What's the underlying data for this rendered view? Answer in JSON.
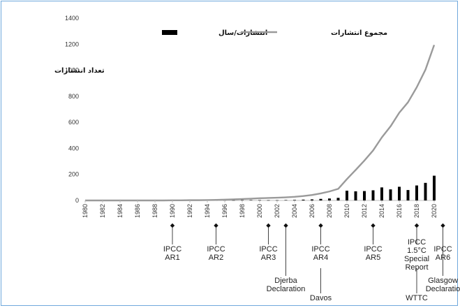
{
  "chart_data": {
    "type": "bar+line",
    "ylabel": "تعداد انتشارات",
    "ylim": [
      0,
      1400
    ],
    "yticks": [
      0,
      200,
      400,
      600,
      800,
      1000,
      1200,
      1400
    ],
    "xlim": [
      1980,
      2020
    ],
    "xticks": [
      1980,
      1982,
      1984,
      1986,
      1988,
      1990,
      1992,
      1994,
      1996,
      1998,
      2000,
      2002,
      2004,
      2006,
      2008,
      2010,
      2012,
      2014,
      2016,
      2018,
      2020
    ],
    "legend": {
      "position": "top-center"
    },
    "grid": false,
    "years": [
      1980,
      1981,
      1982,
      1983,
      1984,
      1985,
      1986,
      1987,
      1988,
      1989,
      1990,
      1991,
      1992,
      1993,
      1994,
      1995,
      1996,
      1997,
      1998,
      1999,
      2000,
      2001,
      2002,
      2003,
      2004,
      2005,
      2006,
      2007,
      2008,
      2009,
      2010,
      2011,
      2012,
      2013,
      2014,
      2015,
      2016,
      2017,
      2018,
      2019,
      2020
    ],
    "series": [
      {
        "name": "انتشارات/سال",
        "kind": "bar",
        "color": "#000000",
        "values": [
          0,
          0,
          0,
          0,
          0,
          0,
          0,
          0,
          0,
          0,
          1,
          0,
          1,
          0,
          1,
          1,
          2,
          2,
          3,
          3,
          3,
          2,
          2,
          3,
          4,
          6,
          8,
          12,
          15,
          20,
          75,
          70,
          72,
          78,
          100,
          85,
          105,
          80,
          115,
          135,
          190
        ]
      },
      {
        "name": "مجموع انتشارات",
        "kind": "line",
        "color": "#9a9a9a",
        "values": [
          0,
          0,
          0,
          0,
          0,
          0,
          0,
          0,
          0,
          0,
          1,
          1,
          2,
          2,
          3,
          4,
          6,
          8,
          11,
          14,
          17,
          19,
          21,
          24,
          28,
          34,
          42,
          54,
          69,
          89,
          164,
          234,
          306,
          384,
          484,
          569,
          674,
          754,
          869,
          1004,
          1194
        ]
      }
    ],
    "events": [
      {
        "year": 1990,
        "level": 1,
        "lines": [
          "IPCC",
          "AR1"
        ]
      },
      {
        "year": 1995,
        "level": 1,
        "lines": [
          "IPCC",
          "AR2"
        ]
      },
      {
        "year": 2001,
        "level": 1,
        "lines": [
          "IPCC",
          "AR3"
        ]
      },
      {
        "year": 2003,
        "level": 2,
        "lines": [
          "Djerba",
          "Declaration"
        ]
      },
      {
        "year": 2007,
        "level": 1,
        "lines": [
          "IPCC",
          "AR4"
        ]
      },
      {
        "year": 2007,
        "level": 3,
        "lines": [
          "Davos"
        ]
      },
      {
        "year": 2013,
        "level": 1,
        "lines": [
          "IPCC",
          "AR5"
        ]
      },
      {
        "year": 2018,
        "level": 1,
        "lines": [
          "IPCC",
          "1.5°C",
          "Special",
          "Report"
        ]
      },
      {
        "year": 2018,
        "level": 3,
        "lines": [
          "WTTC"
        ]
      },
      {
        "year": 2021,
        "level": 1,
        "lines": [
          "IPCC",
          "AR6"
        ]
      },
      {
        "year": 2021,
        "level": 2,
        "lines": [
          "Glasgow",
          "Declaratio"
        ]
      }
    ]
  }
}
